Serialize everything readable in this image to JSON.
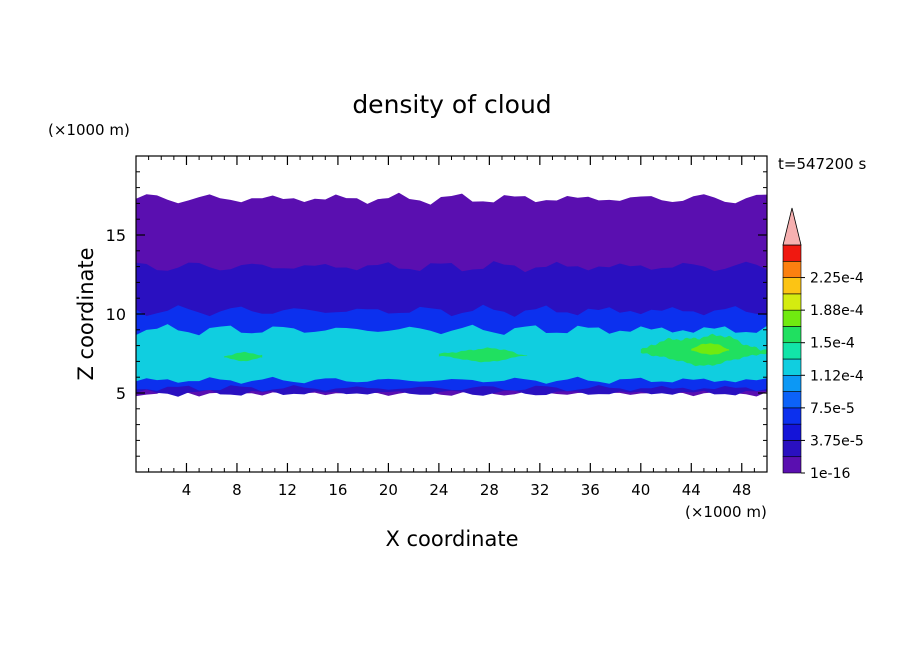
{
  "chart_data": {
    "type": "heatmap",
    "title": "density of cloud",
    "xlabel": "X coordinate",
    "ylabel": "Z coordinate",
    "x_unit": "(×1000 m)",
    "y_unit": "(×1000 m)",
    "time_label": "t=547200 s",
    "xlim": [
      0,
      50
    ],
    "ylim": [
      0,
      20
    ],
    "x_ticks": [
      4,
      8,
      12,
      16,
      20,
      24,
      28,
      32,
      36,
      40,
      44,
      48
    ],
    "y_ticks": [
      5,
      10,
      15
    ],
    "colorbar": {
      "labels": [
        "1e-16",
        "3.75e-5",
        "7.5e-5",
        "1.12e-4",
        "1.5e-4",
        "1.88e-4",
        "2.25e-4"
      ],
      "levels": [
        1e-16,
        1.875e-05,
        3.75e-05,
        5.625e-05,
        7.5e-05,
        9.375e-05,
        0.0001125,
        0.00013125,
        0.00015,
        0.00016875,
        0.0001875,
        0.00020625,
        0.000225,
        0.00024375
      ],
      "colors": [
        "#5a0fb0",
        "#2a10c0",
        "#1414d8",
        "#0c30ee",
        "#0c62f8",
        "#0c98f5",
        "#10cee0",
        "#12e4a8",
        "#20e060",
        "#70ea10",
        "#d4ec10",
        "#fcc414",
        "#fc8010",
        "#f01810"
      ],
      "extend_color": "#f6b0b0"
    },
    "cloud_layers": [
      {
        "level_index": 0,
        "x_range": [
          0,
          50
        ],
        "z_range": [
          5.0,
          17.3
        ],
        "note": "upper boundary ragged with gaps"
      },
      {
        "level_index": 1,
        "x_range": [
          0,
          50
        ],
        "z_range": [
          5.0,
          13.0
        ]
      },
      {
        "level_index": 3,
        "x_range": [
          0,
          50
        ],
        "z_range": [
          5.3,
          10.2
        ]
      },
      {
        "level_index": 6,
        "x_range": [
          0,
          50
        ],
        "z_range": [
          5.8,
          9.0
        ]
      },
      {
        "level_index": 8,
        "x_range": [
          7,
          10
        ],
        "z_range": [
          7.0,
          7.6
        ]
      },
      {
        "level_index": 8,
        "x_range": [
          24,
          31
        ],
        "z_range": [
          7.0,
          7.8
        ]
      },
      {
        "level_index": 8,
        "x_range": [
          40,
          50
        ],
        "z_range": [
          6.8,
          8.6
        ]
      },
      {
        "level_index": 9,
        "x_range": [
          44,
          47
        ],
        "z_range": [
          7.4,
          8.1
        ]
      }
    ]
  }
}
